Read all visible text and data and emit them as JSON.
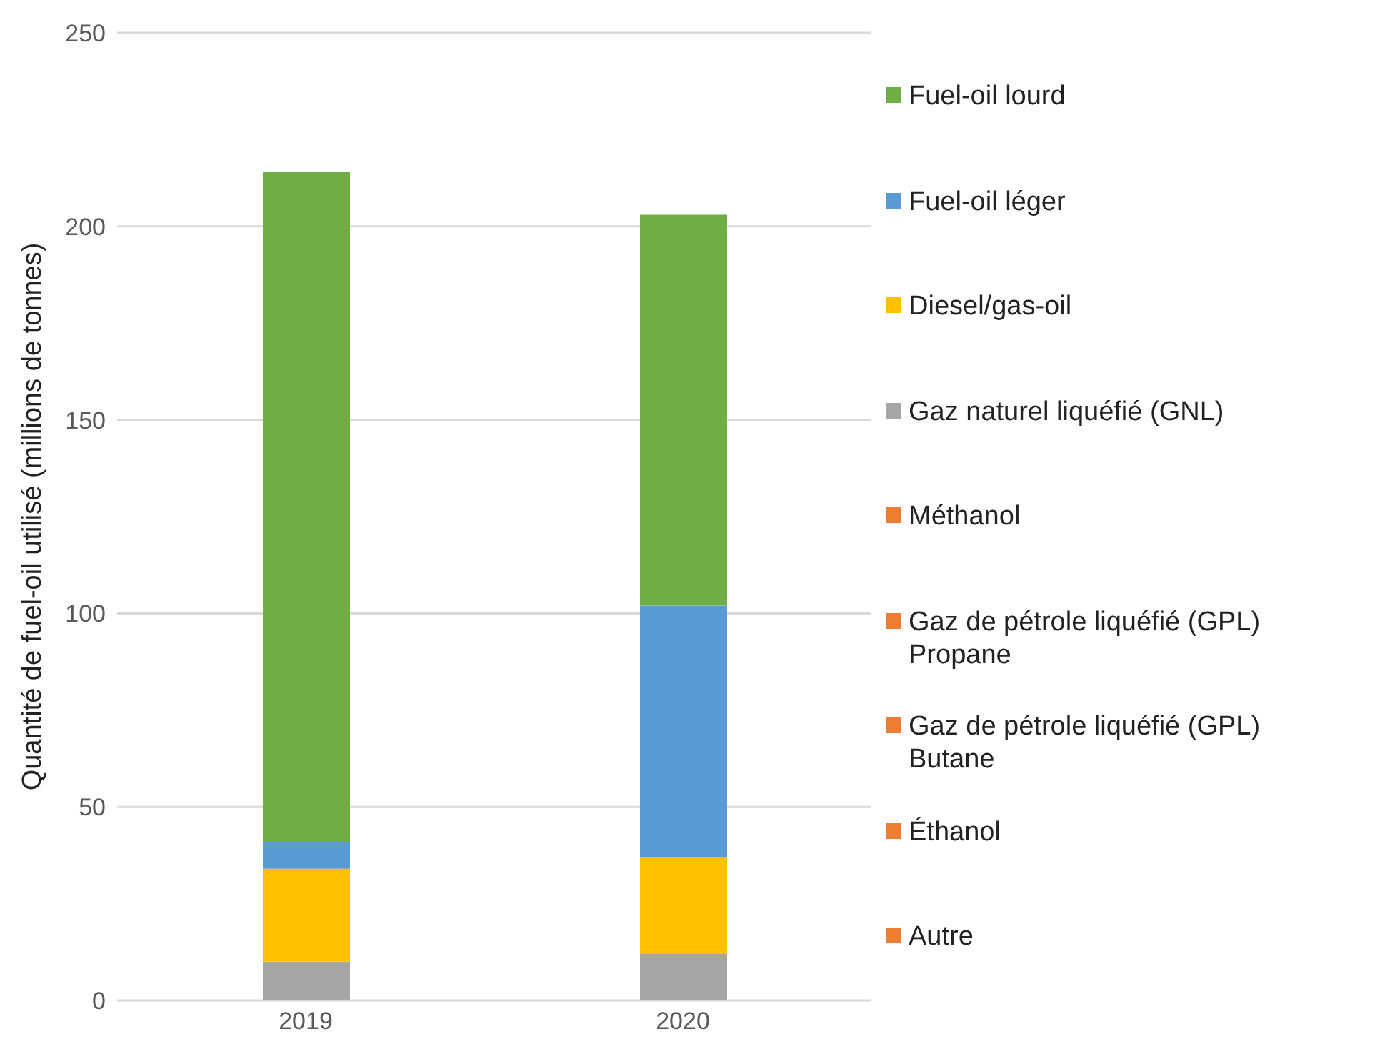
{
  "chart_data": {
    "type": "bar",
    "ylabel": "Quantité de fuel-oil utilisé (millions de tonnes)",
    "categories": [
      "2019",
      "2020"
    ],
    "stacked": true,
    "ylim": [
      0,
      250
    ],
    "yticks": [
      0,
      50,
      100,
      150,
      200,
      250
    ],
    "grid": "y",
    "legend": "right",
    "series": [
      {
        "name": "Autre",
        "color": "#ed7d31",
        "values": [
          0,
          0
        ]
      },
      {
        "name": "Éthanol",
        "color": "#ed7d31",
        "values": [
          0,
          0
        ]
      },
      {
        "name": "Gaz de pétrole liquéfié (GPL) Butane",
        "color": "#ed7d31",
        "values": [
          0,
          0
        ]
      },
      {
        "name": "Gaz de pétrole liquéfié (GPL) Propane",
        "color": "#ed7d31",
        "values": [
          0,
          0
        ]
      },
      {
        "name": "Méthanol",
        "color": "#ed7d31",
        "values": [
          0,
          0
        ]
      },
      {
        "name": "Gaz naturel liquéfié (GNL)",
        "color": "#a5a5a5",
        "values": [
          10,
          12
        ]
      },
      {
        "name": "Diesel/gas-oil",
        "color": "#ffc000",
        "values": [
          24,
          25
        ]
      },
      {
        "name": "Fuel-oil léger",
        "color": "#5b9bd5",
        "values": [
          7,
          65
        ]
      },
      {
        "name": "Fuel-oil lourd",
        "color": "#70ad47",
        "values": [
          173,
          101
        ]
      }
    ]
  }
}
